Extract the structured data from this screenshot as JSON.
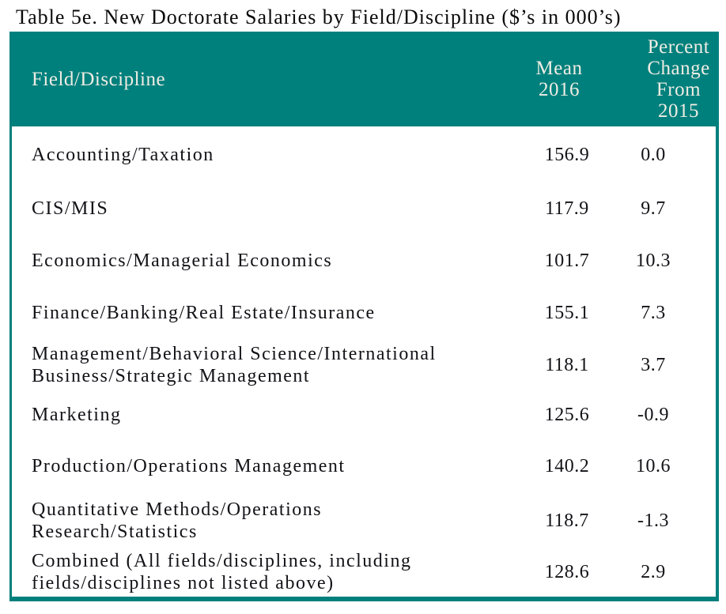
{
  "title": "Table 5e. New Doctorate Salaries by Field/Discipline ($’s in 000’s)",
  "header": {
    "field": "Field/Discipline",
    "mean": "Mean\n2016",
    "percent": "Percent\nChange\nFrom\n2015"
  },
  "table": {
    "rows": [
      {
        "field": "Accounting/Taxation",
        "mean": "156.9",
        "percent": "0.0"
      },
      {
        "field": "CIS/MIS",
        "mean": "117.9",
        "percent": "9.7"
      },
      {
        "field": "Economics/Managerial Economics",
        "mean": "101.7",
        "percent": "10.3"
      },
      {
        "field": "Finance/Banking/Real Estate/Insurance",
        "mean": "155.1",
        "percent": "7.3"
      },
      {
        "field": "Management/Behavioral Science/International\nBusiness/Strategic Management",
        "mean": "118.1",
        "percent": "3.7"
      },
      {
        "field": "Marketing",
        "mean": "125.6",
        "percent": "-0.9"
      },
      {
        "field": "Production/Operations Management",
        "mean": "140.2",
        "percent": "10.6"
      },
      {
        "field": "Quantitative Methods/Operations\nResearch/Statistics",
        "mean": "118.7",
        "percent": "-1.3"
      },
      {
        "field": "Combined (All fields/disciplines, including\nfields/disciplines not listed above)",
        "mean": "128.6",
        "percent": "2.9"
      }
    ]
  },
  "colors": {
    "header_background": "#00807D",
    "header_text": "#EFEDE3",
    "body_text": "#121217",
    "table_border": "#00807D",
    "page_background": "#FFFFFF"
  }
}
